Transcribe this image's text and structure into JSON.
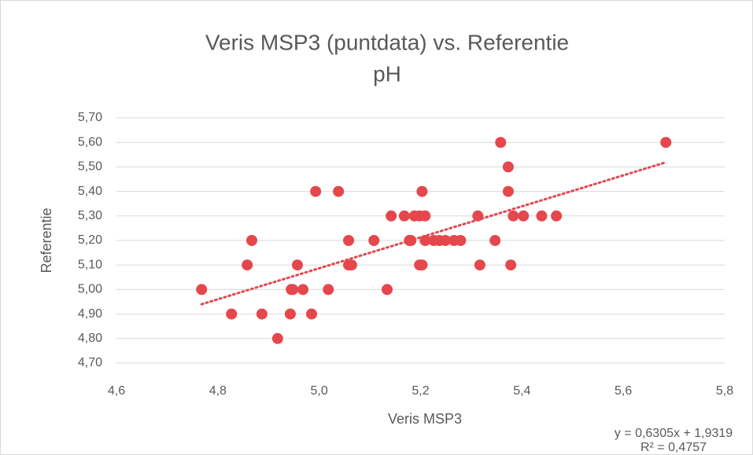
{
  "chart_data": {
    "type": "scatter",
    "title": [
      "Veris MSP3 (puntdata) vs. Referentie",
      "pH"
    ],
    "x_label": "Veris MSP3",
    "y_label": "Referentie",
    "color": "#e5474d",
    "grid": true,
    "x": [
      4.768,
      4.827,
      4.858,
      4.867,
      4.887,
      4.918,
      4.943,
      4.945,
      4.948,
      4.957,
      4.968,
      4.985,
      4.993,
      5.018,
      5.038,
      5.058,
      5.058,
      5.064,
      5.108,
      5.134,
      5.142,
      5.168,
      5.178,
      5.181,
      5.188,
      5.198,
      5.198,
      5.203,
      5.203,
      5.209,
      5.209,
      5.226,
      5.237,
      5.249,
      5.266,
      5.279,
      5.313,
      5.317,
      5.347,
      5.358,
      5.373,
      5.373,
      5.378,
      5.383,
      5.403,
      5.439,
      5.468,
      5.684
    ],
    "values": [
      5.0,
      4.9,
      5.1,
      5.2,
      4.9,
      4.8,
      4.9,
      5.0,
      5.0,
      5.1,
      5.0,
      4.9,
      5.4,
      5.0,
      5.4,
      5.2,
      5.1,
      5.1,
      5.2,
      5.0,
      5.3,
      5.3,
      5.2,
      5.2,
      5.3,
      5.3,
      5.1,
      5.1,
      5.4,
      5.3,
      5.2,
      5.2,
      5.2,
      5.2,
      5.2,
      5.2,
      5.3,
      5.1,
      5.2,
      5.6,
      5.5,
      5.4,
      5.1,
      5.3,
      5.3,
      5.3,
      5.3,
      5.6
    ],
    "xlim": [
      4.6,
      5.8
    ],
    "xticks": [
      {
        "value": 4.6,
        "label": "4,6"
      },
      {
        "value": 4.8,
        "label": "4,8"
      },
      {
        "value": 5.0,
        "label": "5,0"
      },
      {
        "value": 5.2,
        "label": "5,2"
      },
      {
        "value": 5.4,
        "label": "5,4"
      },
      {
        "value": 5.6,
        "label": "5,6"
      },
      {
        "value": 5.8,
        "label": "5,8"
      }
    ],
    "ylim": [
      4.7,
      5.7
    ],
    "yticks": [
      {
        "value": 4.7,
        "label": "4,70"
      },
      {
        "value": 4.8,
        "label": "4,80"
      },
      {
        "value": 4.9,
        "label": "4,90"
      },
      {
        "value": 5.0,
        "label": "5,00"
      },
      {
        "value": 5.1,
        "label": "5,10"
      },
      {
        "value": 5.2,
        "label": "5,20"
      },
      {
        "value": 5.3,
        "label": "5,30"
      },
      {
        "value": 5.4,
        "label": "5,40"
      },
      {
        "value": 5.5,
        "label": "5,50"
      },
      {
        "value": 5.6,
        "label": "5,60"
      },
      {
        "value": 5.7,
        "label": "5,70"
      }
    ],
    "trendline": {
      "equation": "y = 0,6305x + 1,9319",
      "r_squared": "R² = 0,4757"
    }
  }
}
